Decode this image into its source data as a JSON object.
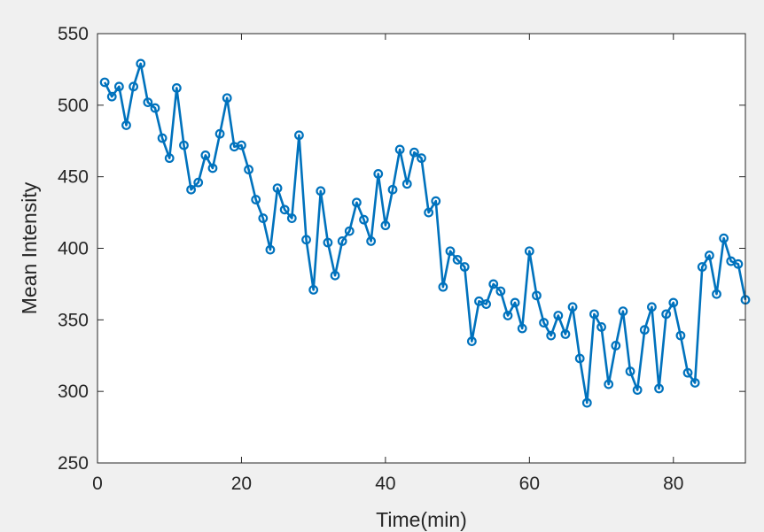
{
  "chart_data": {
    "type": "line",
    "title": "",
    "xlabel": "Time(min)",
    "ylabel": "Mean Intensity",
    "xlim": [
      0,
      90
    ],
    "ylim": [
      250,
      550
    ],
    "xticks": [
      "0",
      "20",
      "40",
      "60",
      "80"
    ],
    "yticks": [
      "250",
      "300",
      "350",
      "400",
      "450",
      "500",
      "550"
    ],
    "xtick_values": [
      0,
      20,
      40,
      60,
      80
    ],
    "ytick_values": [
      250,
      300,
      350,
      400,
      450,
      500,
      550
    ],
    "grid": false,
    "marker": "circle",
    "line_color": "#0072bd",
    "background_color": "#f0f0f0",
    "axes_color": "#ffffff",
    "series": [
      {
        "x": [
          1,
          2,
          3,
          4,
          5,
          6,
          7,
          8,
          9,
          10,
          11,
          12,
          13,
          14,
          15,
          16,
          17,
          18,
          19,
          20,
          21,
          22,
          23,
          24,
          25,
          26,
          27,
          28,
          29,
          30,
          31,
          32,
          33,
          34,
          35,
          36,
          37,
          38,
          39,
          40,
          41,
          42,
          43,
          44,
          45,
          46,
          47,
          48,
          49,
          50,
          51,
          52,
          53,
          54,
          55,
          56,
          57,
          58,
          59,
          60,
          61,
          62,
          63,
          64,
          65,
          66,
          67,
          68,
          69,
          70,
          71,
          72,
          73,
          74,
          75,
          76,
          77,
          78,
          79,
          80,
          81,
          82,
          83,
          84,
          85,
          86,
          87,
          88,
          89,
          90
        ],
        "values": [
          516,
          506,
          513,
          486,
          513,
          529,
          502,
          498,
          477,
          463,
          512,
          472,
          441,
          446,
          465,
          456,
          480,
          505,
          471,
          472,
          455,
          434,
          421,
          399,
          442,
          427,
          421,
          479,
          406,
          371,
          440,
          404,
          381,
          405,
          412,
          432,
          420,
          405,
          452,
          416,
          441,
          469,
          445,
          467,
          463,
          425,
          433,
          373,
          398,
          392,
          387,
          335,
          363,
          361,
          375,
          370,
          353,
          362,
          344,
          398,
          367,
          348,
          339,
          353,
          340,
          359,
          323,
          292,
          354,
          345,
          305,
          332,
          356,
          314,
          301,
          343,
          359,
          302,
          354,
          362,
          339,
          313,
          306,
          387,
          395,
          368,
          407,
          391,
          389,
          364
        ]
      }
    ]
  }
}
